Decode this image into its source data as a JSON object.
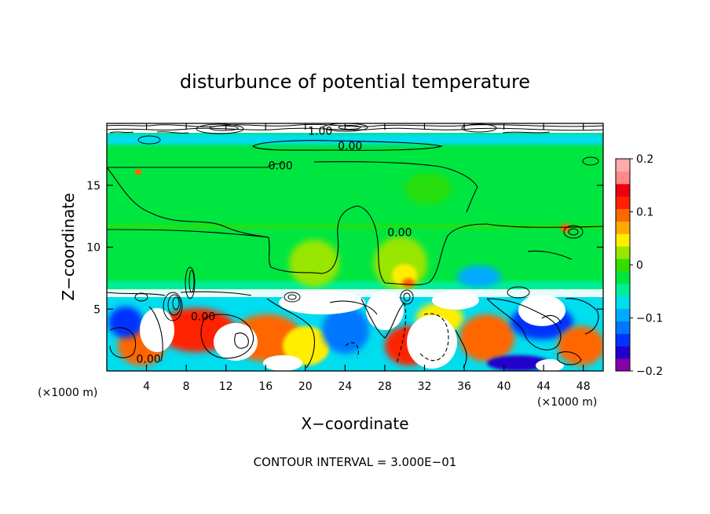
{
  "chart_data": {
    "type": "heatmap",
    "title": "disturbunce of potential temperature",
    "xlabel": "X−coordinate",
    "ylabel": "Z−coordinate",
    "x_unit": "(×1000 m)",
    "x_unit_right": "(×1000 m)",
    "xlim": [
      0,
      50
    ],
    "ylim": [
      0,
      20
    ],
    "x_ticks": [
      4,
      8,
      12,
      16,
      20,
      24,
      28,
      32,
      36,
      40,
      44,
      48
    ],
    "y_ticks": [
      5,
      10,
      15
    ],
    "colorbar": {
      "range": [
        -0.2,
        0.2
      ],
      "tick_values": [
        0.2,
        0.1,
        0,
        -0.1,
        -0.2
      ],
      "tick_labels": [
        "0.2",
        "0.1",
        "0",
        "−0.1",
        "−0.2"
      ],
      "colors": [
        "#8800aa",
        "#2200cc",
        "#0033ff",
        "#0077ff",
        "#00aaff",
        "#00ddee",
        "#00ee99",
        "#00e640",
        "#33dd00",
        "#99e600",
        "#ffee00",
        "#ffaa00",
        "#ff6600",
        "#ff2200",
        "#ee0011",
        "#ff8888",
        "#ffaaaa"
      ]
    },
    "contour_labels": [
      {
        "text": "1.00",
        "x": 21.5,
        "z": 19.4
      },
      {
        "text": "0.00",
        "x": 24.5,
        "z": 18.2
      },
      {
        "text": "0.00",
        "x": 17.5,
        "z": 16.6
      },
      {
        "text": "0.00",
        "x": 29.5,
        "z": 11.2
      },
      {
        "text": "0.00",
        "x": 9.7,
        "z": 4.4
      },
      {
        "text": "0.00",
        "x": 4.2,
        "z": 1.0
      }
    ],
    "contour_interval_text": "CONTOUR INTERVAL = 3.000E−01",
    "grid": false,
    "legend": "colorbar-right"
  }
}
